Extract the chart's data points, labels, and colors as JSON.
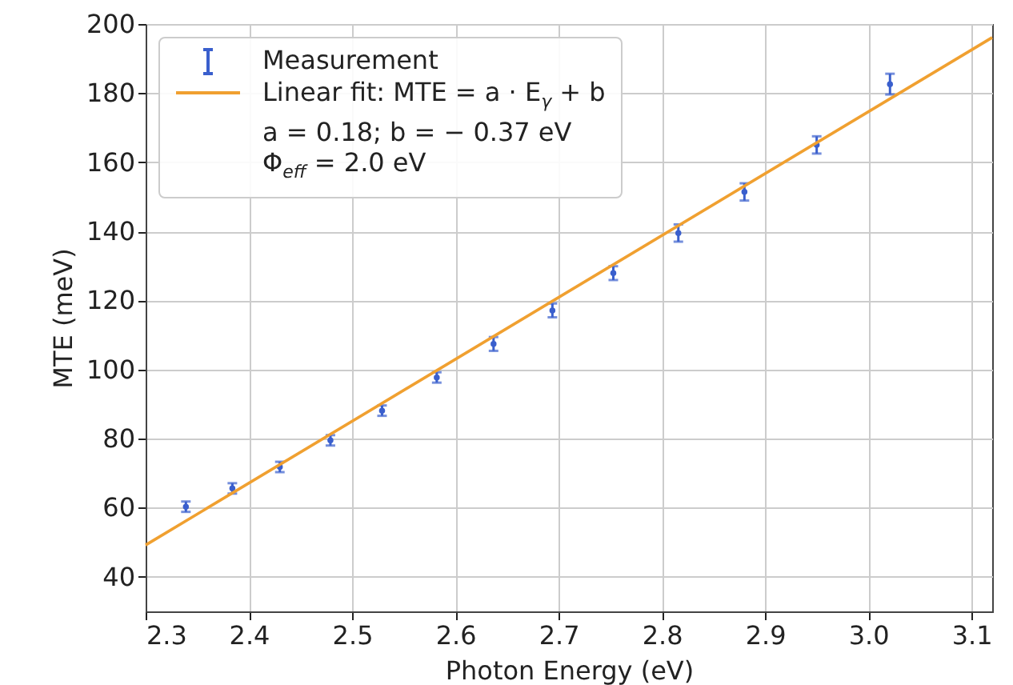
{
  "chart_data": {
    "type": "scatter",
    "xlabel": "Photon Energy (eV)",
    "ylabel": "MTE (meV)",
    "xlim": [
      2.3,
      3.12
    ],
    "ylim": [
      30,
      200
    ],
    "xticks": [
      2.3,
      2.4,
      2.5,
      2.6,
      2.7,
      2.8,
      2.9,
      {
        "value": 3.0,
        "label": "3.0"
      },
      3.1
    ],
    "yticks": [
      40,
      60,
      80,
      100,
      120,
      140,
      160,
      180,
      200
    ],
    "grid": true,
    "legend": "top left",
    "series": [
      {
        "name": "Measurement",
        "color": "#3a5fcd",
        "marker": "circle",
        "x": [
          2.339,
          2.384,
          2.43,
          2.479,
          2.529,
          2.582,
          2.637,
          2.694,
          2.753,
          2.816,
          2.88,
          2.95,
          3.021
        ],
        "values": [
          60.3,
          65.6,
          71.8,
          79.5,
          88.1,
          97.7,
          107.4,
          117.1,
          127.9,
          139.5,
          151.4,
          165,
          182.6
        ],
        "errors": [
          1.5,
          1.5,
          1.5,
          1.5,
          1.5,
          1.5,
          2,
          2,
          2,
          2.5,
          2.5,
          2.5,
          3
        ]
      },
      {
        "name": "Linear fit: MTE = a · E$_{γ}$ + b\na = 0.18; b = − 0.37 eV\nΦ$_{eff}$ = 2.0 eV",
        "type": "line",
        "color": "#f0a030",
        "x": [
          2.3,
          3.12
        ],
        "values": [
          49.2,
          196.1
        ]
      }
    ]
  }
}
